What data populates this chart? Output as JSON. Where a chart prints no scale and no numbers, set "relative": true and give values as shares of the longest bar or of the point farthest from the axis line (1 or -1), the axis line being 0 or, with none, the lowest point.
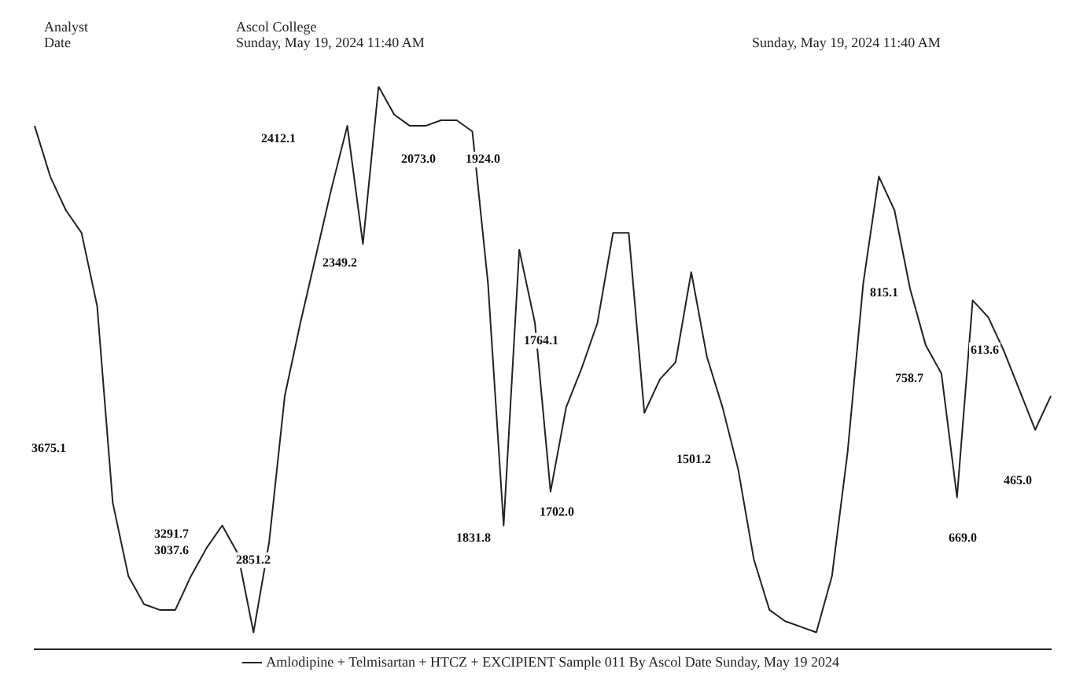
{
  "chart_data": {
    "type": "line",
    "relative": true,
    "legend": "bottom",
    "grid": false,
    "marker": "none",
    "line_style": "solid",
    "categories": [
      null,
      null,
      null,
      null,
      null,
      null,
      null,
      null,
      null,
      null,
      null,
      null,
      null,
      null,
      null,
      null,
      null,
      null,
      null,
      null,
      null,
      null,
      null,
      null,
      null,
      null,
      null,
      null,
      null,
      null,
      null,
      null,
      null,
      null,
      null,
      null,
      null,
      null,
      null,
      null,
      null,
      null,
      null,
      null,
      null,
      null,
      null,
      null,
      null,
      null,
      null,
      null,
      null,
      null,
      null,
      null,
      null,
      null,
      null,
      null,
      null,
      null,
      null,
      null,
      null,
      null
    ],
    "series": [
      {
        "name": "Amlodipine + Telmisartan + HTCZ + EXCIPIENT Sample 011 By Ascol Date Sunday, May 19 2024",
        "color": "#222222",
        "values": [
          0.93,
          0.84,
          0.78,
          0.74,
          0.61,
          0.26,
          0.13,
          0.08,
          0.07,
          0.07,
          0.13,
          0.18,
          0.22,
          0.17,
          0.03,
          0.19,
          0.45,
          0.58,
          0.7,
          0.82,
          0.93,
          0.72,
          1.0,
          0.95,
          0.93,
          0.93,
          0.94,
          0.94,
          0.92,
          0.65,
          0.22,
          0.71,
          0.58,
          0.28,
          0.43,
          0.5,
          0.58,
          0.74,
          0.74,
          0.42,
          0.48,
          0.51,
          0.67,
          0.52,
          0.43,
          0.32,
          0.16,
          0.07,
          0.05,
          0.04,
          0.03,
          0.13,
          0.35,
          0.65,
          0.84,
          0.78,
          0.64,
          0.54,
          0.49,
          0.27,
          0.62,
          0.59,
          0.53,
          0.46,
          0.39,
          0.45
        ]
      }
    ],
    "annotations": [
      "Analyst",
      "Date",
      "Ascol College",
      "Sunday, May 19, 2024 11:40 AM",
      "Sunday, May 19, 2024 11:40 AM",
      "3675.1",
      "3291.7",
      "3037.6",
      "2851.2",
      "2412.1",
      "2349.2",
      "2073.0",
      "1924.0",
      "1831.8",
      "1764.1",
      "1702.0",
      "1501.2",
      "815.1",
      "758.7",
      "669.0",
      "613.6",
      "465.0"
    ]
  }
}
